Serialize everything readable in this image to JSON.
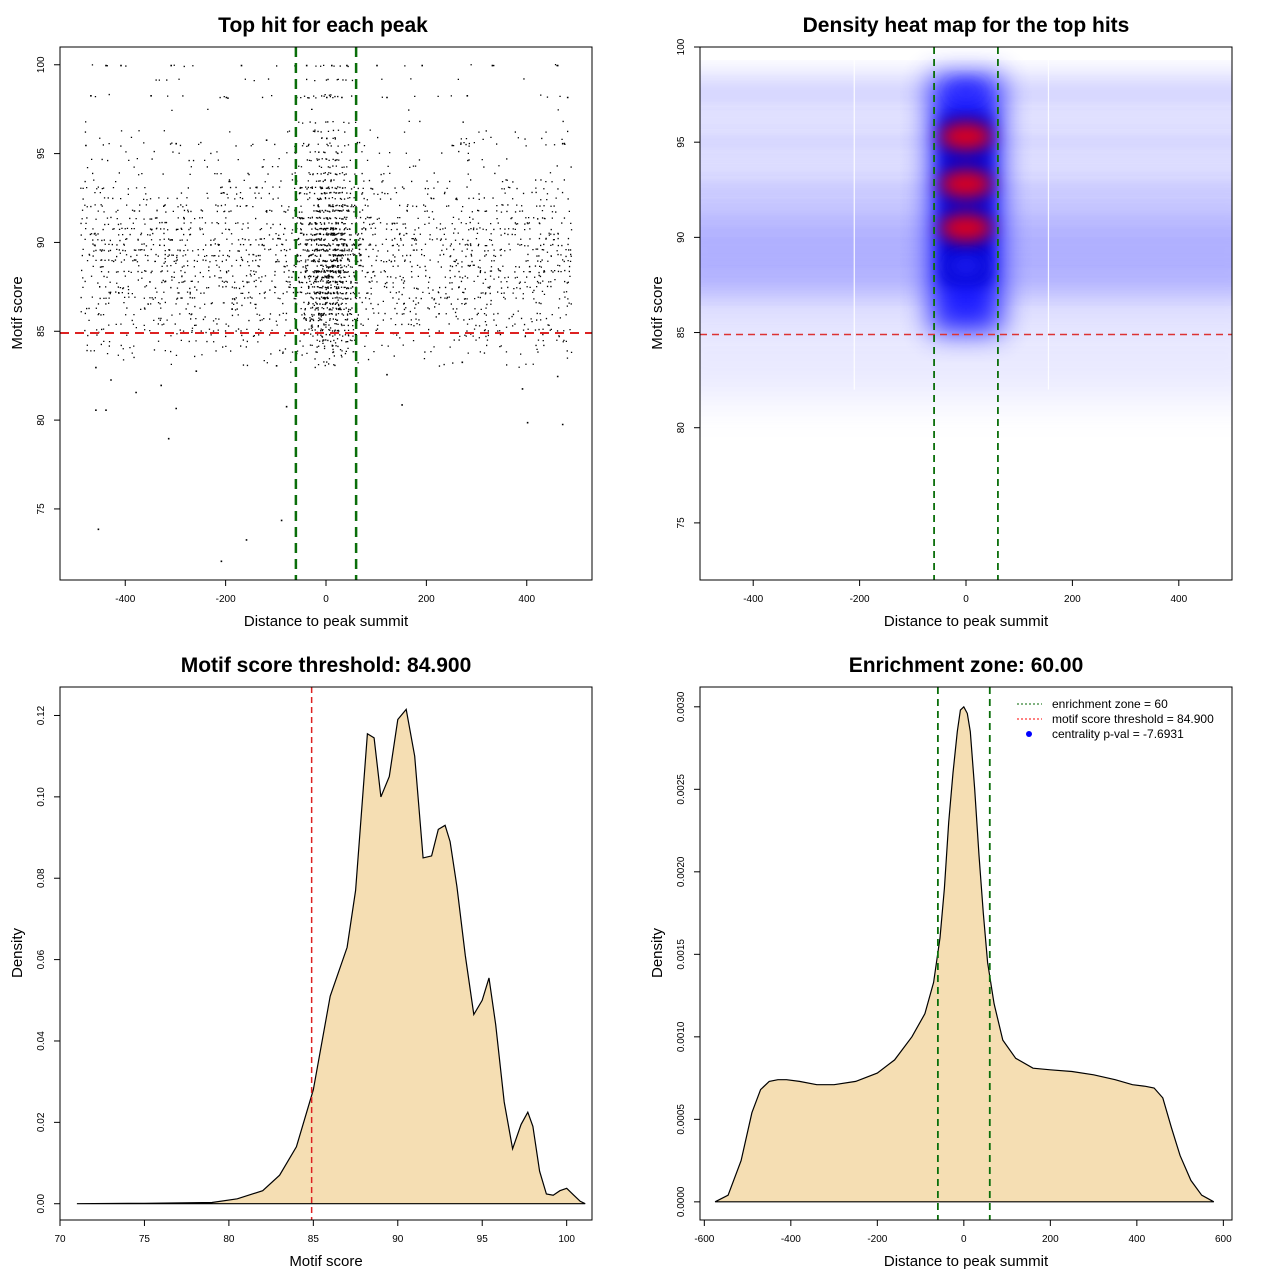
{
  "chart_data": [
    {
      "type": "scatter",
      "title": "Top hit for each peak",
      "xlabel": "Distance to peak summit",
      "ylabel": "Motif score",
      "xlim": [
        -530,
        530
      ],
      "ylim": [
        71,
        101
      ],
      "xticks": [
        -400,
        -200,
        0,
        200,
        400
      ],
      "yticks": [
        75,
        80,
        85,
        90,
        95,
        100
      ],
      "score_threshold": 84.9,
      "enrichment_zone": [
        -60,
        60
      ],
      "point_count_estimate": 20000,
      "points_sample": [
        [
          -440,
          100
        ],
        [
          -410,
          100
        ],
        [
          -310,
          100
        ],
        [
          -170,
          100
        ],
        [
          -40,
          100
        ],
        [
          10,
          100
        ],
        [
          40,
          100
        ],
        [
          100,
          100
        ],
        [
          190,
          100
        ],
        [
          330,
          100
        ],
        [
          460,
          100
        ],
        [
          -470,
          98.3
        ],
        [
          -350,
          98.3
        ],
        [
          -200,
          98.2
        ],
        [
          -60,
          98.2
        ],
        [
          0,
          98.2
        ],
        [
          30,
          98.2
        ],
        [
          120,
          98.2
        ],
        [
          280,
          98.3
        ],
        [
          480,
          98.2
        ],
        [
          -480,
          95.5
        ],
        [
          -300,
          95.6
        ],
        [
          -120,
          95.8
        ],
        [
          0,
          95.9
        ],
        [
          60,
          95.6
        ],
        [
          250,
          95.5
        ],
        [
          470,
          95.6
        ],
        [
          -460,
          83
        ],
        [
          -430,
          82.3
        ],
        [
          -380,
          81.6
        ],
        [
          -330,
          82
        ],
        [
          -260,
          82.8
        ],
        [
          -100,
          83.1
        ],
        [
          120,
          82.6
        ],
        [
          270,
          83.3
        ],
        [
          390,
          81.8
        ],
        [
          460,
          82.5
        ],
        [
          -460,
          80.6
        ],
        [
          -440,
          80.6
        ],
        [
          -300,
          80.7
        ],
        [
          -80,
          80.8
        ],
        [
          150,
          80.9
        ],
        [
          400,
          79.9
        ],
        [
          470,
          79.8
        ],
        [
          -315,
          79
        ],
        [
          -455,
          73.9
        ],
        [
          -90,
          74.4
        ],
        [
          -160,
          73.3
        ],
        [
          -210,
          72.1
        ]
      ]
    },
    {
      "type": "heatmap",
      "title": "Density heat map for the top hits",
      "xlabel": "Distance to peak summit",
      "ylabel": "Motif score",
      "xlim": [
        -500,
        500
      ],
      "ylim": [
        72,
        100
      ],
      "xticks": [
        -400,
        -200,
        0,
        200,
        400
      ],
      "yticks": [
        75,
        80,
        85,
        90,
        95,
        100
      ],
      "score_threshold": 84.9,
      "enrichment_zone": [
        -60,
        60
      ],
      "colors": [
        "#ffffff",
        "#0000ff",
        "#ff0000"
      ],
      "hotspots": [
        {
          "x": 0,
          "y": 90.5,
          "level": "high"
        },
        {
          "x": 0,
          "y": 92.8,
          "level": "high"
        },
        {
          "x": 0,
          "y": 95.3,
          "level": "high"
        },
        {
          "x": 0,
          "y": 97.7,
          "level": "medium"
        },
        {
          "x": 0,
          "y": 88.5,
          "level": "medium"
        }
      ],
      "bands_y": [
        88.2,
        90.2,
        92.6,
        95.0,
        97.5
      ]
    },
    {
      "type": "area",
      "title": "Motif score threshold: 84.900",
      "xlabel": "Motif score",
      "ylabel": "Density",
      "xlim": [
        70,
        101.5
      ],
      "ylim": [
        -0.004,
        0.127
      ],
      "xticks": [
        70,
        75,
        80,
        85,
        90,
        95,
        100
      ],
      "yticks": [
        0.0,
        0.02,
        0.04,
        0.06,
        0.08,
        0.1,
        0.12
      ],
      "ytick_labels": [
        "0.00",
        "0.02",
        "0.04",
        "0.06",
        "0.08",
        "0.10",
        "0.12"
      ],
      "fill_color": "#f5deb3",
      "threshold": 84.9,
      "x": [
        71,
        75,
        79,
        80.5,
        82,
        83,
        84,
        85,
        86,
        87,
        87.5,
        88.2,
        88.6,
        89,
        89.5,
        90,
        90.5,
        91,
        91.5,
        92,
        92.4,
        92.8,
        93.1,
        93.5,
        94,
        94.5,
        95,
        95.4,
        95.8,
        96.3,
        96.8,
        97.3,
        97.7,
        98,
        98.4,
        98.8,
        99.2,
        99.6,
        100,
        100.4,
        100.8,
        101.1
      ],
      "y": [
        0.0,
        0.0001,
        0.0003,
        0.0012,
        0.0032,
        0.007,
        0.014,
        0.028,
        0.051,
        0.063,
        0.077,
        0.1155,
        0.1145,
        0.1,
        0.105,
        0.119,
        0.1215,
        0.11,
        0.085,
        0.0855,
        0.092,
        0.093,
        0.089,
        0.078,
        0.061,
        0.0465,
        0.05,
        0.0555,
        0.044,
        0.025,
        0.0135,
        0.0195,
        0.0225,
        0.019,
        0.008,
        0.0024,
        0.0021,
        0.0032,
        0.0038,
        0.0022,
        0.0006,
        0.0
      ]
    },
    {
      "type": "area",
      "title": "Enrichment zone: 60.00",
      "xlabel": "Distance to peak summit",
      "ylabel": "Density",
      "xlim": [
        -610,
        620
      ],
      "ylim": [
        -0.00011,
        0.00312
      ],
      "xticks": [
        -600,
        -400,
        -200,
        0,
        200,
        400,
        600
      ],
      "yticks": [
        0.0,
        0.0005,
        0.001,
        0.0015,
        0.002,
        0.0025,
        0.003
      ],
      "ytick_labels": [
        "0.0000",
        "0.0005",
        "0.0010",
        "0.0015",
        "0.0020",
        "0.0025",
        "0.0030"
      ],
      "fill_color": "#f5deb3",
      "enrichment_zone": [
        -60,
        60
      ],
      "legend_position": "top-right",
      "legend": [
        {
          "label": "enrichment zone = 60",
          "style": "dotted",
          "color": "#006400"
        },
        {
          "label": "motif score threshold = 84.900",
          "style": "dotted",
          "color": "#ff0000"
        },
        {
          "label": "centrality p-val = -7.6931",
          "style": "point",
          "color": "#0000ff"
        }
      ],
      "x": [
        -575,
        -545,
        -515,
        -490,
        -470,
        -450,
        -430,
        -410,
        -380,
        -340,
        -300,
        -250,
        -200,
        -160,
        -120,
        -90,
        -70,
        -55,
        -45,
        -35,
        -25,
        -15,
        -8,
        0,
        8,
        15,
        25,
        35,
        45,
        55,
        70,
        90,
        120,
        160,
        200,
        250,
        300,
        350,
        390,
        420,
        440,
        460,
        480,
        500,
        525,
        550,
        578
      ],
      "y": [
        0.0,
        4e-05,
        0.00025,
        0.00054,
        0.00068,
        0.00073,
        0.00074,
        0.00074,
        0.00073,
        0.00071,
        0.00071,
        0.00073,
        0.00078,
        0.00086,
        0.001,
        0.00114,
        0.00133,
        0.0016,
        0.0019,
        0.0023,
        0.0026,
        0.00285,
        0.00298,
        0.003,
        0.00296,
        0.00285,
        0.0025,
        0.0021,
        0.00175,
        0.00145,
        0.0012,
        0.00098,
        0.00087,
        0.00081,
        0.0008,
        0.00079,
        0.00077,
        0.00074,
        0.00071,
        0.0007,
        0.00069,
        0.00063,
        0.00045,
        0.00028,
        0.00013,
        4e-05,
        0.0
      ]
    }
  ]
}
